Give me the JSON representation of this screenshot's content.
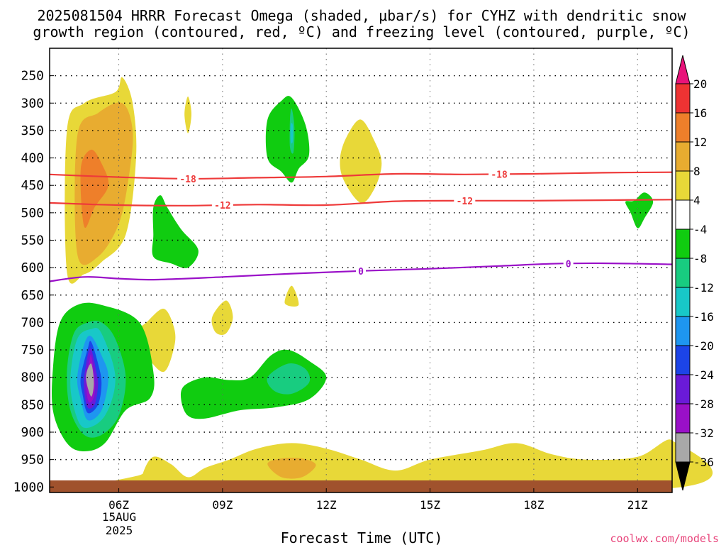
{
  "chart_data": {
    "type": "heatmap",
    "title_line1": "2025081504 HRRR Forecast Omega (shaded, μbar/s) for CYHZ with dendritic snow",
    "title_line2": "growth region (contoured, red, ºC) and freezing level (contoured, purple, ºC)",
    "xlabel": "Forecast Time (UTC)",
    "ylabel": "",
    "credit": "coolwx.com/models",
    "x_ticks": [
      {
        "hour": 6,
        "label": "06Z"
      },
      {
        "hour": 9,
        "label": "09Z"
      },
      {
        "hour": 12,
        "label": "12Z"
      },
      {
        "hour": 15,
        "label": "15Z"
      },
      {
        "hour": 18,
        "label": "18Z"
      },
      {
        "hour": 21,
        "label": "21Z"
      }
    ],
    "date_label_line1": "15AUG",
    "date_label_line2": "2025",
    "xlim": [
      4,
      22
    ],
    "ylim": [
      1010,
      200
    ],
    "y_ticks": [
      250,
      300,
      350,
      400,
      450,
      500,
      550,
      600,
      650,
      700,
      750,
      800,
      850,
      900,
      950,
      1000
    ],
    "colorbar": {
      "labels": [
        "20",
        "16",
        "12",
        "8",
        "4",
        "-4",
        "-8",
        "-12",
        "-16",
        "-20",
        "-24",
        "-28",
        "-32",
        "-36"
      ],
      "colors": [
        "#e8137a",
        "#ee3333",
        "#ee7f2a",
        "#e8ac30",
        "#e8d838",
        "#ffffff",
        "#10cc10",
        "#18cc80",
        "#18c8c8",
        "#1e96f0",
        "#1c44e8",
        "#6a1ad8",
        "#9a10c8",
        "#a8a8a8",
        "#000000"
      ]
    },
    "isotherms": [
      {
        "label": "-18",
        "color": "#ee3a3a",
        "points": [
          [
            4,
            430
          ],
          [
            6,
            435
          ],
          [
            8,
            438
          ],
          [
            10,
            436
          ],
          [
            12,
            434
          ],
          [
            14,
            429
          ],
          [
            16,
            430
          ],
          [
            18,
            429
          ],
          [
            20,
            427
          ],
          [
            22,
            426
          ]
        ],
        "label_hours": [
          8,
          17
        ]
      },
      {
        "label": "-12",
        "color": "#ee3a3a",
        "points": [
          [
            4,
            482
          ],
          [
            6,
            486
          ],
          [
            8,
            487
          ],
          [
            10,
            485
          ],
          [
            12,
            486
          ],
          [
            14,
            479
          ],
          [
            16,
            478
          ],
          [
            18,
            478
          ],
          [
            20,
            477
          ],
          [
            22,
            476
          ]
        ],
        "label_hours": [
          9,
          16
        ]
      },
      {
        "label": "0",
        "color": "#9a10c8",
        "points": [
          [
            4,
            625
          ],
          [
            5,
            617
          ],
          [
            6,
            620
          ],
          [
            7,
            622
          ],
          [
            9,
            617
          ],
          [
            11,
            611
          ],
          [
            13,
            606
          ],
          [
            15,
            602
          ],
          [
            17,
            597
          ],
          [
            18.5,
            593
          ],
          [
            20,
            592
          ],
          [
            22,
            594
          ]
        ],
        "label_hours": [
          13,
          19
        ]
      }
    ],
    "omega_regions": [
      {
        "value": 4,
        "color": "#e8d838",
        "points": [
          [
            4.5,
            608
          ],
          [
            4.5,
            350
          ],
          [
            5,
            300
          ],
          [
            5.9,
            280
          ],
          [
            6.1,
            253
          ],
          [
            6.4,
            300
          ],
          [
            6.5,
            400
          ],
          [
            6.2,
            540
          ],
          [
            5.5,
            590
          ],
          [
            5,
            612
          ]
        ]
      },
      {
        "value": 8,
        "color": "#e8ac30",
        "points": [
          [
            4.8,
            575
          ],
          [
            4.8,
            360
          ],
          [
            5.4,
            318
          ],
          [
            6.1,
            300
          ],
          [
            6.4,
            350
          ],
          [
            6.3,
            430
          ],
          [
            6,
            520
          ],
          [
            5.4,
            580
          ]
        ]
      },
      {
        "value": 12,
        "color": "#ee7f2a",
        "points": [
          [
            5,
            525
          ],
          [
            4.9,
            420
          ],
          [
            5.2,
            385
          ],
          [
            5.5,
            410
          ],
          [
            5.7,
            450
          ],
          [
            5.3,
            490
          ]
        ]
      },
      {
        "value": 4,
        "color": "#e8d838",
        "points": [
          [
            8,
            288
          ],
          [
            8.1,
            320
          ],
          [
            8,
            355
          ],
          [
            7.9,
            320
          ]
        ]
      },
      {
        "value": 4,
        "color": "#e8d838",
        "points": [
          [
            12.4,
            400
          ],
          [
            12.6,
            360
          ],
          [
            13,
            330
          ],
          [
            13.4,
            370
          ],
          [
            13.6,
            410
          ],
          [
            13.4,
            455
          ],
          [
            13,
            482
          ],
          [
            12.5,
            440
          ]
        ]
      },
      {
        "value": 4,
        "color": "#e8d838",
        "points": [
          [
            11,
            633
          ],
          [
            10.8,
            665
          ],
          [
            11.2,
            668
          ]
        ]
      },
      {
        "value": 4,
        "color": "#e8d838",
        "points": [
          [
            7.3,
            675
          ],
          [
            6.8,
            700
          ],
          [
            6.5,
            720
          ],
          [
            6.8,
            760
          ],
          [
            7.3,
            790
          ],
          [
            7.6,
            745
          ],
          [
            7.6,
            710
          ]
        ]
      },
      {
        "value": 4,
        "color": "#e8d838",
        "points": [
          [
            9.1,
            660
          ],
          [
            8.7,
            690
          ],
          [
            8.8,
            718
          ],
          [
            9.1,
            720
          ],
          [
            9.3,
            690
          ]
        ]
      },
      {
        "value": 4,
        "color": "#e8d838",
        "points": [
          [
            6.7,
            975
          ],
          [
            7.0,
            945
          ],
          [
            7.5,
            958
          ],
          [
            8.0,
            982
          ],
          [
            8.5,
            965
          ],
          [
            9.2,
            950
          ],
          [
            10.0,
            930
          ],
          [
            11,
            920
          ],
          [
            12,
            930
          ],
          [
            13,
            950
          ],
          [
            14,
            970
          ],
          [
            15,
            950
          ],
          [
            16.5,
            933
          ],
          [
            17.5,
            920
          ],
          [
            18.5,
            940
          ],
          [
            19.5,
            950
          ],
          [
            21,
            945
          ],
          [
            22,
            915
          ],
          [
            22,
            1002
          ],
          [
            6.7,
            1002
          ]
        ]
      },
      {
        "value": 8,
        "color": "#e8ac30",
        "points": [
          [
            10.3,
            958
          ],
          [
            10.7,
            948
          ],
          [
            11.3,
            948
          ],
          [
            11.7,
            960
          ],
          [
            11.3,
            982
          ],
          [
            10.7,
            982
          ]
        ]
      },
      {
        "value": -4,
        "color": "#10cc10",
        "points": [
          [
            10.3,
            400
          ],
          [
            10.3,
            330
          ],
          [
            10.7,
            296
          ],
          [
            11,
            290
          ],
          [
            11.4,
            340
          ],
          [
            11.5,
            395
          ],
          [
            11.2,
            420
          ],
          [
            11,
            445
          ],
          [
            10.7,
            425
          ]
        ]
      },
      {
        "value": -8,
        "color": "#18cc80",
        "points": [
          [
            10.95,
            330
          ],
          [
            11.0,
            310
          ],
          [
            11.08,
            345
          ],
          [
            11.05,
            390
          ],
          [
            10.95,
            380
          ]
        ]
      },
      {
        "value": -12,
        "color": "#18c8c8",
        "points": [
          [
            10.97,
            340
          ],
          [
            11.03,
            340
          ],
          [
            11.03,
            370
          ],
          [
            10.97,
            370
          ]
        ]
      },
      {
        "value": -4,
        "color": "#10cc10",
        "points": [
          [
            7.0,
            540
          ],
          [
            7.0,
            490
          ],
          [
            7.2,
            468
          ],
          [
            7.4,
            490
          ],
          [
            7.8,
            530
          ],
          [
            8.3,
            568
          ],
          [
            8.0,
            600
          ],
          [
            7.5,
            592
          ],
          [
            7.0,
            580
          ]
        ]
      },
      {
        "value": -4,
        "color": "#10cc10",
        "points": [
          [
            4.1,
            780
          ],
          [
            4.3,
            700
          ],
          [
            4.8,
            668
          ],
          [
            5.5,
            668
          ],
          [
            6.6,
            700
          ],
          [
            7.0,
            790
          ],
          [
            6.9,
            838
          ],
          [
            6.2,
            860
          ],
          [
            5.6,
            920
          ],
          [
            5.0,
            935
          ],
          [
            4.5,
            920
          ],
          [
            4.1,
            862
          ]
        ]
      },
      {
        "value": -8,
        "color": "#18cc80",
        "points": [
          [
            4.5,
            790
          ],
          [
            4.7,
            720
          ],
          [
            5.1,
            700
          ],
          [
            5.5,
            700
          ],
          [
            5.9,
            730
          ],
          [
            6.2,
            800
          ],
          [
            6.0,
            870
          ],
          [
            5.5,
            905
          ],
          [
            5.0,
            905
          ],
          [
            4.6,
            860
          ]
        ]
      },
      {
        "value": -12,
        "color": "#18c8c8",
        "points": [
          [
            4.6,
            800
          ],
          [
            4.8,
            730
          ],
          [
            5.2,
            712
          ],
          [
            5.5,
            720
          ],
          [
            5.9,
            800
          ],
          [
            5.6,
            870
          ],
          [
            5.0,
            892
          ],
          [
            4.7,
            855
          ]
        ]
      },
      {
        "value": -16,
        "color": "#1e96f0",
        "points": [
          [
            4.8,
            800
          ],
          [
            5.0,
            740
          ],
          [
            5.2,
            725
          ],
          [
            5.5,
            760
          ],
          [
            5.7,
            800
          ],
          [
            5.5,
            860
          ],
          [
            5.1,
            878
          ],
          [
            4.9,
            840
          ]
        ]
      },
      {
        "value": -20,
        "color": "#1c44e8",
        "points": [
          [
            4.9,
            800
          ],
          [
            5.1,
            748
          ],
          [
            5.2,
            735
          ],
          [
            5.4,
            775
          ],
          [
            5.5,
            810
          ],
          [
            5.4,
            850
          ],
          [
            5.1,
            865
          ],
          [
            4.95,
            830
          ]
        ]
      },
      {
        "value": -24,
        "color": "#6a1ad8",
        "points": [
          [
            5.0,
            800
          ],
          [
            5.1,
            760
          ],
          [
            5.2,
            748
          ],
          [
            5.35,
            790
          ],
          [
            5.4,
            815
          ],
          [
            5.3,
            850
          ],
          [
            5.1,
            855
          ],
          [
            5.0,
            825
          ]
        ]
      },
      {
        "value": -28,
        "color": "#9a10c8",
        "points": [
          [
            5.05,
            800
          ],
          [
            5.15,
            770
          ],
          [
            5.2,
            760
          ],
          [
            5.3,
            800
          ],
          [
            5.3,
            830
          ],
          [
            5.2,
            845
          ],
          [
            5.1,
            840
          ]
        ]
      },
      {
        "value": -32,
        "color": "#a8a8a8",
        "points": [
          [
            5.05,
            800
          ],
          [
            5.2,
            775
          ],
          [
            5.28,
            810
          ],
          [
            5.2,
            835
          ]
        ]
      },
      {
        "value": -4,
        "color": "#10cc10",
        "points": [
          [
            7.8,
            840
          ],
          [
            7.9,
            815
          ],
          [
            8.5,
            800
          ],
          [
            9.2,
            805
          ],
          [
            9.8,
            800
          ],
          [
            10.4,
            760
          ],
          [
            10.9,
            750
          ],
          [
            11.5,
            770
          ],
          [
            12.0,
            800
          ],
          [
            11.5,
            840
          ],
          [
            10.5,
            855
          ],
          [
            9.5,
            860
          ],
          [
            8.5,
            875
          ],
          [
            8.0,
            870
          ]
        ]
      },
      {
        "value": -8,
        "color": "#18cc80",
        "points": [
          [
            10.3,
            800
          ],
          [
            10.9,
            775
          ],
          [
            11.4,
            785
          ],
          [
            11.5,
            810
          ],
          [
            11.0,
            830
          ],
          [
            10.5,
            825
          ]
        ]
      },
      {
        "value": -4,
        "color": "#10cc10",
        "points": [
          [
            20.9,
            478
          ],
          [
            21.2,
            463
          ],
          [
            21.45,
            480
          ],
          [
            21.2,
            510
          ],
          [
            21.0,
            528
          ],
          [
            20.8,
            500
          ],
          [
            20.65,
            480
          ]
        ]
      }
    ]
  }
}
